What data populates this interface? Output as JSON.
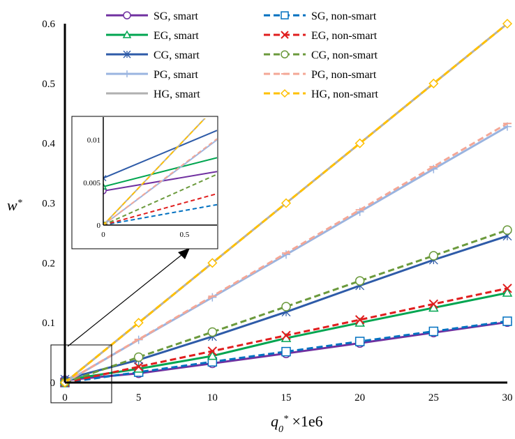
{
  "chart_data": {
    "type": "line",
    "title": "",
    "xlabel": {
      "main": "q",
      "sub": "0",
      "sup": "*",
      "suffix": " ×1e6"
    },
    "ylabel": {
      "main": "w",
      "sup": "*"
    },
    "x": [
      0,
      5,
      10,
      15,
      20,
      25,
      30
    ],
    "xlim": [
      0,
      30
    ],
    "ylim": [
      0,
      0.6
    ],
    "xticks": [
      "0",
      "5",
      "10",
      "15",
      "20",
      "25",
      "30"
    ],
    "yticks": [
      "0",
      "0.1",
      "0.2",
      "0.3",
      "0.4",
      "0.5",
      "0.6"
    ],
    "grid": false,
    "legend_position": "top",
    "series": [
      {
        "name": "SG, smart",
        "color": "#7030a0",
        "dash": false,
        "marker": "circle",
        "values": [
          0.004,
          0.0155,
          0.032,
          0.0487,
          0.066,
          0.0835,
          0.101
        ]
      },
      {
        "name": "SG, non-smart",
        "color": "#0070c0",
        "dash": true,
        "marker": "square",
        "values": [
          0,
          0.0175,
          0.0347,
          0.0517,
          0.0687,
          0.0856,
          0.1025
        ]
      },
      {
        "name": "EG, smart",
        "color": "#00a550",
        "dash": false,
        "marker": "triangle",
        "values": [
          0.0045,
          0.023,
          0.0445,
          0.0742,
          0.1,
          0.125,
          0.15
        ]
      },
      {
        "name": "EG, non-smart",
        "color": "#e01e1e",
        "dash": true,
        "marker": "x",
        "values": [
          0,
          0.0265,
          0.0525,
          0.0788,
          0.105,
          0.1313,
          0.1575
        ]
      },
      {
        "name": "CG, smart",
        "color": "#2e5ba8",
        "dash": false,
        "marker": "asterisk",
        "values": [
          0.0055,
          0.038,
          0.077,
          0.118,
          0.162,
          0.205,
          0.245
        ]
      },
      {
        "name": "CG, non-smart",
        "color": "#6b9a3c",
        "dash": true,
        "marker": "circle",
        "values": [
          0,
          0.0425,
          0.0845,
          0.127,
          0.17,
          0.212,
          0.255
        ]
      },
      {
        "name": "PG, smart",
        "color": "#9ab4e0",
        "dash": false,
        "marker": "plus",
        "values": [
          0,
          0.0715,
          0.1425,
          0.214,
          0.2855,
          0.357,
          0.428
        ]
      },
      {
        "name": "PG, non-smart",
        "color": "#f4a796",
        "dash": true,
        "marker": "dash",
        "values": [
          0,
          0.0722,
          0.1443,
          0.2165,
          0.2887,
          0.361,
          0.4332
        ]
      },
      {
        "name": "HG, smart",
        "color": "#b0b0b0",
        "dash": false,
        "marker": "dash",
        "values": [
          0,
          0.1,
          0.2,
          0.3,
          0.4,
          0.5,
          0.6
        ]
      },
      {
        "name": "HG, non-smart",
        "color": "#ffc000",
        "dash": true,
        "marker": "diamond",
        "values": [
          0,
          0.1,
          0.2,
          0.3,
          0.4,
          0.5,
          0.6
        ]
      }
    ],
    "inset": {
      "xlim": [
        0,
        0.7
      ],
      "ylim": [
        0,
        0.012
      ],
      "xticks": [
        "0",
        "0.5"
      ],
      "yticks": [
        "0",
        "0.005",
        "0.01"
      ]
    }
  }
}
